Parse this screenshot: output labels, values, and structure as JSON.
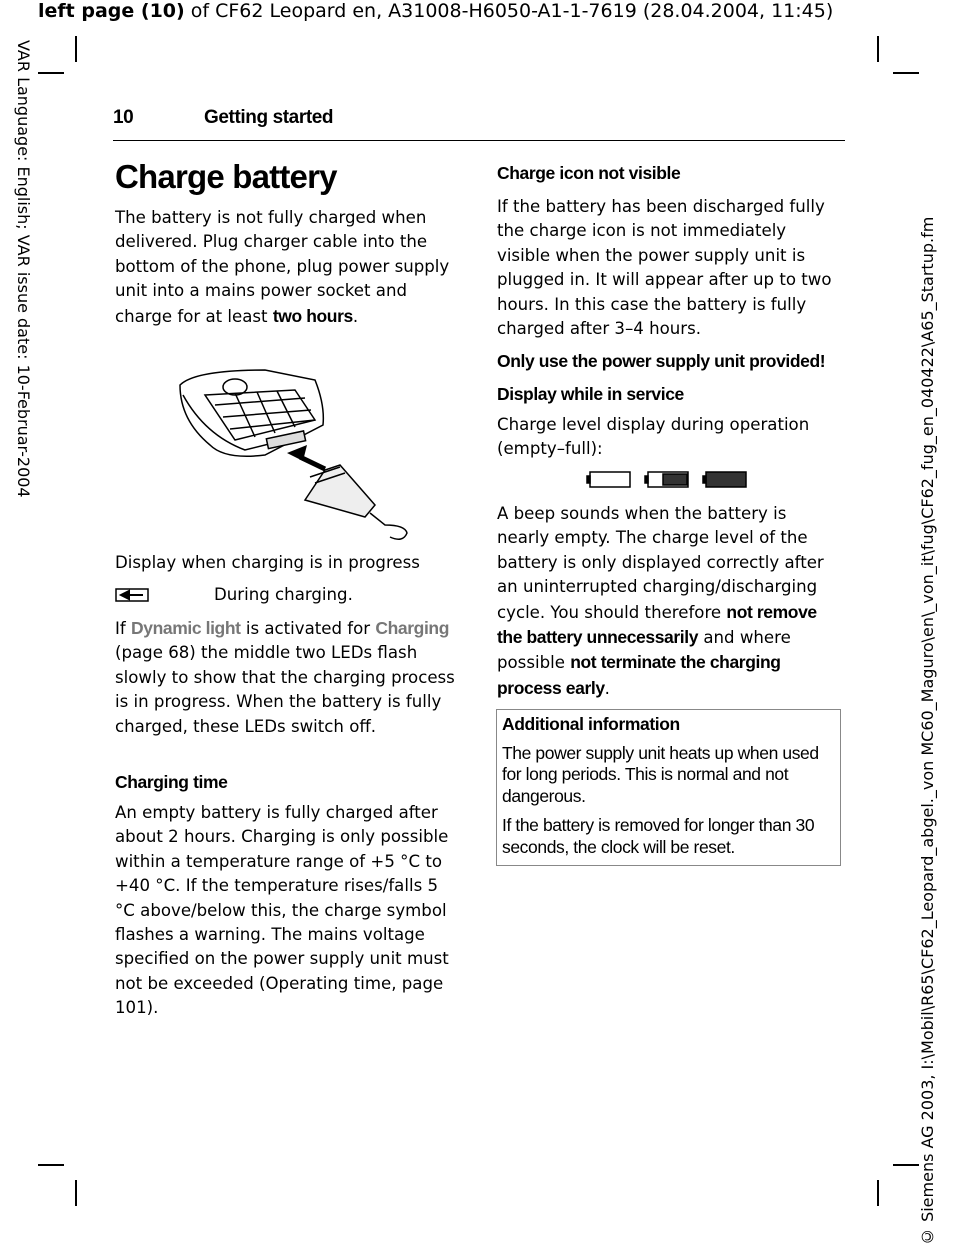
{
  "top_header": {
    "bold": "left page (10)",
    "rest": " of CF62 Leopard en, A31008-H6050-A1-1-7619 (28.04.2004, 11:45)"
  },
  "left_margin": "VAR Language: English; VAR issue date: 10-Februar-2004",
  "right_margin": "© Siemens AG 2003, I:\\Mobil\\R65\\CF62_Leopard_abgel._von MC60_Maguro\\en\\_von_it\\fug\\CF62_fug_en_040422\\A65_Startup.fm",
  "running_head": {
    "page": "10",
    "section": "Getting started"
  },
  "left_column": {
    "title": "Charge battery",
    "intro": {
      "runs": [
        {
          "text": "The battery is not fully charged when delivered. Plug charger cable into the bottom of the phone, plug power supply unit into a mains power socket and charge for at least ",
          "style": "plain"
        },
        {
          "text": "two hours",
          "style": "bold"
        },
        {
          "text": ".",
          "style": "plain"
        }
      ]
    },
    "display_charging": "Display when charging is in progress",
    "during_charging": "During charging.",
    "dynamic_light": {
      "runs": [
        {
          "text": "If ",
          "style": "plain"
        },
        {
          "text": "Dynamic light",
          "style": "menu"
        },
        {
          "text": " is activated for ",
          "style": "plain"
        },
        {
          "text": "Charging",
          "style": "menu"
        },
        {
          "text": " (page 68) the middle two LEDs flash slowly to show that the charging process is in progress. When the battery is fully charged, these LEDs switch off.",
          "style": "plain"
        }
      ]
    },
    "charging_time_heading": "Charging time",
    "charging_time_text": "An empty battery is fully charged after about 2 hours. Charging is only possible within a temperature range of +5 °C to +40 °C. If the temperature rises/falls 5 °C above/below this, the charge symbol flashes a warning. The mains voltage specified on the power supply unit must not be exceeded (Operating time, page 101)."
  },
  "right_column": {
    "icon_heading": "Charge icon not visible",
    "icon_text": "If the battery has been discharged fully the charge icon is not immediately visible when the power supply unit is plugged in. It will appear after up to two hours. In this case the battery is fully charged after 3–4 hours.",
    "warning": "Only use the power supply unit provided!",
    "service_heading": "Display while in service",
    "service_text": "Charge level display during operation (empty–full):",
    "beep": {
      "runs": [
        {
          "text": "A beep sounds when the battery is nearly empty. The charge level of the battery is only displayed correctly after an uninterrupted charging/discharging cycle. You should therefore ",
          "style": "plain"
        },
        {
          "text": "not remove the battery unnecessarily",
          "style": "bold"
        },
        {
          "text": " and where possible ",
          "style": "plain"
        },
        {
          "text": "not terminate the charging process early",
          "style": "bold"
        },
        {
          "text": ".",
          "style": "plain"
        }
      ]
    },
    "info_box": {
      "title": "Additional information",
      "paragraphs": [
        "The power supply unit heats up when used for long periods. This is normal and not dangerous.",
        "If the battery is removed for longer than 30 seconds, the clock will be reset."
      ]
    }
  }
}
